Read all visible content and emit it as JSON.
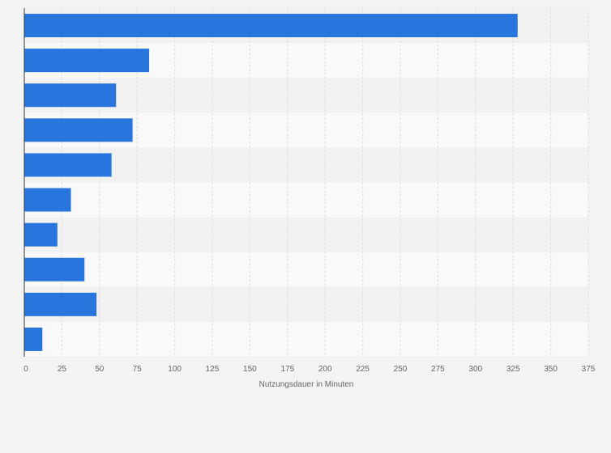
{
  "chart_data": {
    "type": "bar",
    "orientation": "horizontal",
    "categories": [
      "",
      "",
      "",
      "",
      "",
      "",
      "",
      "",
      "",
      ""
    ],
    "values": [
      328,
      83,
      61,
      72,
      58,
      31,
      22,
      40,
      48,
      12
    ],
    "title": "",
    "xlabel": "Nutzungsdauer in Minuten",
    "ylabel": "",
    "xlim": [
      0,
      375
    ],
    "xticks": [
      0,
      25,
      50,
      75,
      100,
      125,
      150,
      175,
      200,
      225,
      250,
      275,
      300,
      325,
      350,
      375
    ],
    "grid": true,
    "legend": "none",
    "colors": {
      "bar": "#2876dd",
      "background": "#f4f4f4",
      "band_light": "#f9f9f9",
      "band_dark": "#f2f2f2",
      "grid": "#dddddd",
      "axis": "#333333",
      "text": "#666666"
    }
  }
}
